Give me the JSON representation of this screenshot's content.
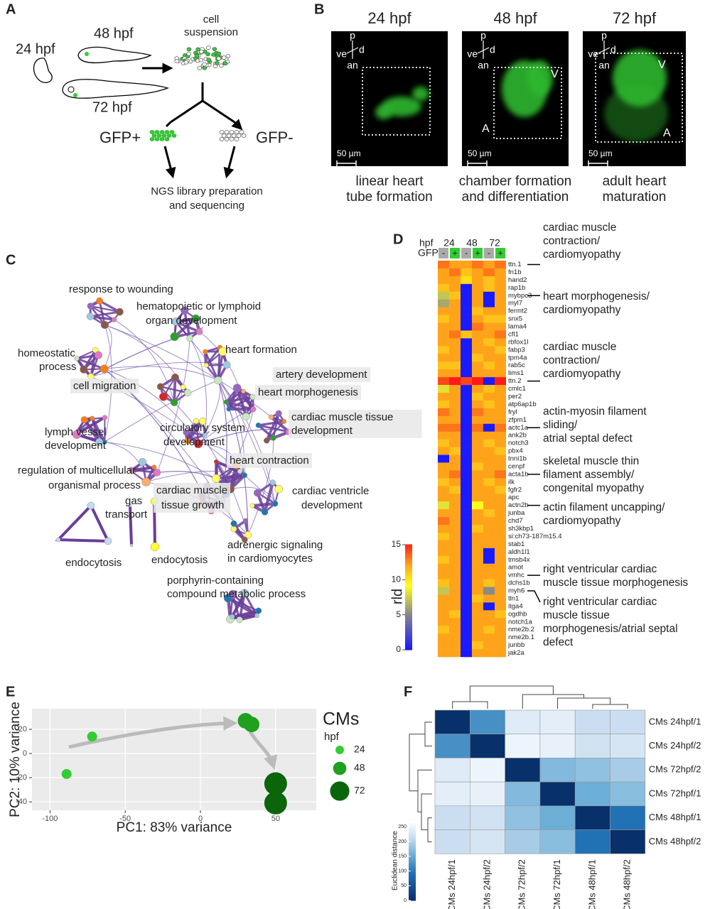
{
  "panel_a": {
    "label": "A",
    "stages": [
      "24 hpf",
      "48 hpf",
      "72 hpf"
    ],
    "suspension": [
      "cell",
      "suspension"
    ],
    "positive": "GFP+",
    "negative": "GFP-",
    "sequencing": [
      "NGS library preparation",
      "and sequencing"
    ]
  },
  "panel_b": {
    "label": "B",
    "images": [
      {
        "title": "24 hpf",
        "orientation": [
          "p",
          "d",
          "ve",
          "an"
        ],
        "scale_bar": "50 µm",
        "chambers": [],
        "caption": [
          "linear heart",
          "tube formation"
        ]
      },
      {
        "title": "48 hpf",
        "orientation": [
          "p",
          "d",
          "ve",
          "an"
        ],
        "scale_bar": "50 µm",
        "chambers": [
          "V",
          "A"
        ],
        "caption": [
          "chamber formation",
          "and differentiation"
        ]
      },
      {
        "title": "72 hpf",
        "orientation": [
          "p",
          "d",
          "ve",
          "an"
        ],
        "scale_bar": "50 µm",
        "chambers": [
          "V",
          "A"
        ],
        "caption": [
          "adult heart",
          "maturation"
        ]
      }
    ]
  },
  "panel_c": {
    "label": "C",
    "terms": [
      [
        "response to wounding"
      ],
      [
        "hematopoietic or lymphoid",
        "organ development"
      ],
      [
        "heart formation"
      ],
      [
        "homeostatic",
        "process"
      ],
      [
        "artery development"
      ],
      [
        "cell migration"
      ],
      [
        "heart morphogenesis"
      ],
      [
        "cardiac muscle tissue",
        "development"
      ],
      [
        "circulatory system",
        "development"
      ],
      [
        "lymph vessel",
        "development"
      ],
      [
        "heart contraction"
      ],
      [
        "regulation of multicellular",
        "organismal process"
      ],
      [
        "cardiac muscle",
        "tissue growth"
      ],
      [
        "cardiac ventricle",
        "development"
      ],
      [
        "gas",
        "transport"
      ],
      [
        "adrenergic signaling",
        "in cardiomyocytes"
      ],
      [
        "endocytosis"
      ],
      [
        "endocytosis"
      ],
      [
        "porphyrin-containing",
        "compound metabolic process"
      ]
    ]
  },
  "chart_data": [
    {
      "type": "heatmap",
      "panel": "D",
      "row_header": "hpf",
      "column_groups": [
        "24",
        "48",
        "72"
      ],
      "gfp_label": "GFP",
      "columns": [
        "-",
        "+",
        "-",
        "+",
        "-",
        "+"
      ],
      "categories": [
        "ttn.1",
        "fn1b",
        "hand2",
        "rap1b",
        "mybpc3",
        "myl7",
        "fermt2",
        "snx5",
        "lama4",
        "cfl1",
        "rbfox1l",
        "fabp3",
        "tpm4a",
        "rab5c",
        "lims1",
        "ttn.2",
        "cmlc1",
        "per2",
        "atp6ap1b",
        "fryl",
        "zfpm1",
        "actc1a",
        "ank2b",
        "notch3",
        "pbx4",
        "tnni1b",
        "cenpf",
        "acta1b",
        "ilk",
        "fgfr2",
        "apc",
        "actn2b",
        "junba",
        "chd7",
        "sh3kbp1",
        "si:ch73-187m15.4",
        "stab1",
        "aldh1l1",
        "tmsb4x",
        "amot",
        "vmhc",
        "dchs1b",
        "myh6",
        "tln1",
        "itga4",
        "ogdhb",
        "notch1a",
        "nme2b.2",
        "nme2b.1",
        "junbb",
        "jak2a"
      ],
      "values": [
        [
          13,
          12,
          12,
          13,
          12,
          13
        ],
        [
          12,
          13,
          11,
          12,
          13,
          12
        ],
        [
          12,
          12,
          10,
          12,
          11,
          12
        ],
        [
          11,
          12,
          0,
          12,
          11,
          12
        ],
        [
          7,
          11,
          0,
          12,
          0,
          12
        ],
        [
          6,
          12,
          0,
          12,
          0,
          12
        ],
        [
          12,
          12,
          0,
          11,
          12,
          12
        ],
        [
          11,
          12,
          0,
          12,
          11,
          11
        ],
        [
          12,
          12,
          0,
          13,
          12,
          12
        ],
        [
          12,
          13,
          11,
          12,
          12,
          13
        ],
        [
          12,
          12,
          0,
          12,
          11,
          12
        ],
        [
          11,
          12,
          0,
          12,
          12,
          11
        ],
        [
          12,
          12,
          0,
          11,
          12,
          12
        ],
        [
          11,
          11,
          0,
          12,
          11,
          12
        ],
        [
          12,
          12,
          0,
          12,
          12,
          12
        ],
        [
          14,
          15,
          14,
          15,
          0,
          15
        ],
        [
          8,
          12,
          0,
          12,
          11,
          12
        ],
        [
          12,
          12,
          0,
          11,
          12,
          12
        ],
        [
          11,
          12,
          0,
          12,
          11,
          12
        ],
        [
          13,
          12,
          0,
          13,
          12,
          12
        ],
        [
          12,
          12,
          0,
          12,
          12,
          12
        ],
        [
          13,
          13,
          0,
          13,
          0,
          13
        ],
        [
          12,
          12,
          0,
          12,
          12,
          12
        ],
        [
          11,
          12,
          0,
          12,
          11,
          12
        ],
        [
          12,
          11,
          0,
          12,
          12,
          11
        ],
        [
          0,
          12,
          0,
          12,
          12,
          12
        ],
        [
          12,
          12,
          0,
          11,
          12,
          12
        ],
        [
          12,
          13,
          0,
          12,
          12,
          13
        ],
        [
          11,
          12,
          0,
          12,
          11,
          12
        ],
        [
          12,
          11,
          0,
          12,
          12,
          11
        ],
        [
          12,
          12,
          0,
          12,
          12,
          12
        ],
        [
          8,
          12,
          0,
          9,
          12,
          12
        ],
        [
          12,
          12,
          0,
          12,
          11,
          12
        ],
        [
          13,
          12,
          0,
          12,
          12,
          12
        ],
        [
          12,
          12,
          0,
          11,
          12,
          12
        ],
        [
          11,
          12,
          0,
          12,
          12,
          12
        ],
        [
          12,
          12,
          0,
          12,
          12,
          12
        ],
        [
          12,
          12,
          0,
          12,
          0,
          12
        ],
        [
          11,
          12,
          0,
          12,
          0,
          12
        ],
        [
          12,
          12,
          0,
          12,
          12,
          12
        ],
        [
          12,
          12,
          0,
          12,
          12,
          12
        ],
        [
          11,
          12,
          0,
          12,
          11,
          12
        ],
        [
          7,
          12,
          0,
          12,
          5,
          12
        ],
        [
          12,
          12,
          0,
          11,
          12,
          12
        ],
        [
          12,
          12,
          0,
          12,
          0,
          12
        ],
        [
          12,
          11,
          0,
          12,
          12,
          11
        ],
        [
          12,
          12,
          0,
          12,
          12,
          12
        ],
        [
          11,
          12,
          0,
          12,
          11,
          12
        ],
        [
          12,
          12,
          0,
          12,
          12,
          12
        ],
        [
          12,
          12,
          0,
          11,
          12,
          12
        ],
        [
          12,
          12,
          0,
          12,
          12,
          12
        ]
      ],
      "colorbar_label": "rld",
      "clim": [
        0,
        15
      ],
      "cticks": [
        0,
        5,
        10,
        15
      ],
      "annotations": [
        [
          "cardiac muscle",
          "contraction/",
          "cardiomyopathy"
        ],
        [
          "heart morphogenesis/",
          "cardiomyopathy"
        ],
        [
          "cardiac muscle",
          "contraction/",
          "cardiomyopathy"
        ],
        [
          "actin-myosin filament",
          "sliding/",
          "atrial septal defect"
        ],
        [
          "skeletal muscle thin",
          "filament assembly/",
          "congenital myopathy"
        ],
        [
          "actin filament uncapping/",
          "cardiomyopathy"
        ],
        [
          "right ventricular cardiac",
          "muscle tissue morphogenesis"
        ],
        [
          "right ventricular cardiac",
          "muscle tissue",
          "morphogenesis/atrial septal",
          "defect"
        ]
      ]
    },
    {
      "type": "scatter",
      "panel": "E",
      "xlabel": "PC1: 83% variance",
      "ylabel": "PC2: 10% variance",
      "legend_title": "CMs",
      "legend_subtitle": "hpf",
      "series": [
        {
          "name": "24",
          "color": "#33cc33",
          "x": [
            -89,
            -72
          ],
          "values": [
            -17,
            14
          ]
        },
        {
          "name": "48",
          "color": "#1fa01f",
          "x": [
            30,
            34
          ],
          "values": [
            27,
            24
          ]
        },
        {
          "name": "72",
          "color": "#0b650b",
          "x": [
            50,
            50
          ],
          "values": [
            -25,
            -41
          ]
        }
      ],
      "xlim": [
        -112,
        77
      ],
      "ylim": [
        -47,
        37
      ],
      "xticks": [
        -100,
        -50,
        0,
        50
      ],
      "yticks": [
        -40,
        -20,
        0,
        20
      ],
      "grid": true
    },
    {
      "type": "heatmap",
      "panel": "F",
      "categories": [
        "CMs 24hpf/1",
        "CMs 24hpf/2",
        "CMs 72hpf/2",
        "CMs 72hpf/1",
        "CMs 48hpf/1",
        "CMs 48hpf/2"
      ],
      "values": [
        [
          0,
          120,
          235,
          240,
          215,
          215
        ],
        [
          120,
          0,
          250,
          245,
          220,
          225
        ],
        [
          235,
          250,
          0,
          165,
          175,
          190
        ],
        [
          240,
          245,
          165,
          0,
          150,
          170
        ],
        [
          215,
          220,
          175,
          150,
          0,
          90
        ],
        [
          215,
          225,
          190,
          170,
          90,
          0
        ]
      ],
      "colorbar_label": "Euclidean distance",
      "clim": [
        0,
        260
      ],
      "cticks": [
        0,
        50,
        100,
        150,
        200,
        250
      ]
    }
  ]
}
